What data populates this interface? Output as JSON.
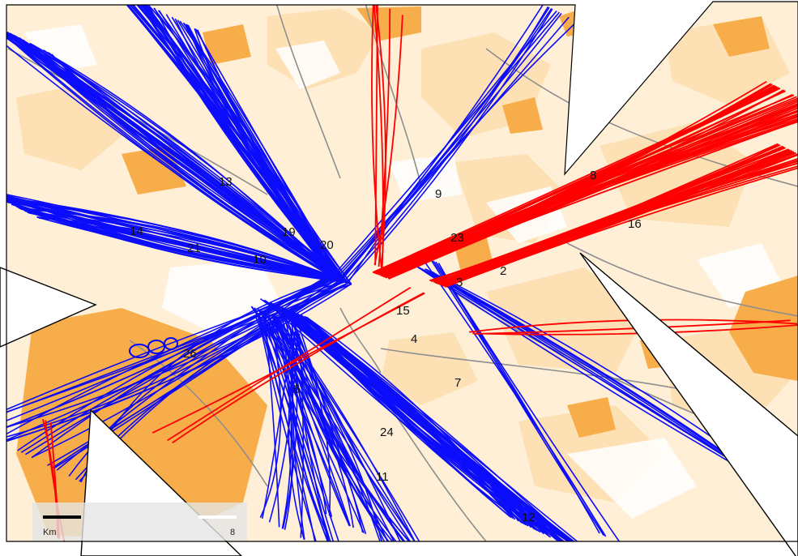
{
  "map": {
    "colors": {
      "background": "#ffffff",
      "urban_light": "#fde1b4",
      "urban_dense": "#f7ad4a",
      "road": "#8e8e8e",
      "route_blue": "#0000ff",
      "route_red": "#ff0000",
      "frame": "#000000"
    },
    "points": [
      {
        "label": "2"
      },
      {
        "label": "3"
      },
      {
        "label": "4"
      },
      {
        "label": "6"
      },
      {
        "label": "7"
      },
      {
        "label": "8"
      },
      {
        "label": "9"
      },
      {
        "label": "10"
      },
      {
        "label": "11"
      },
      {
        "label": "12"
      },
      {
        "label": "13"
      },
      {
        "label": "14"
      },
      {
        "label": "15"
      },
      {
        "label": "16"
      },
      {
        "label": "19"
      },
      {
        "label": "20"
      },
      {
        "label": "21"
      },
      {
        "label": "23"
      },
      {
        "label": "24"
      },
      {
        "label": "26"
      }
    ],
    "scale_bar": {
      "unit_label": "Km",
      "right_label": "8"
    }
  }
}
